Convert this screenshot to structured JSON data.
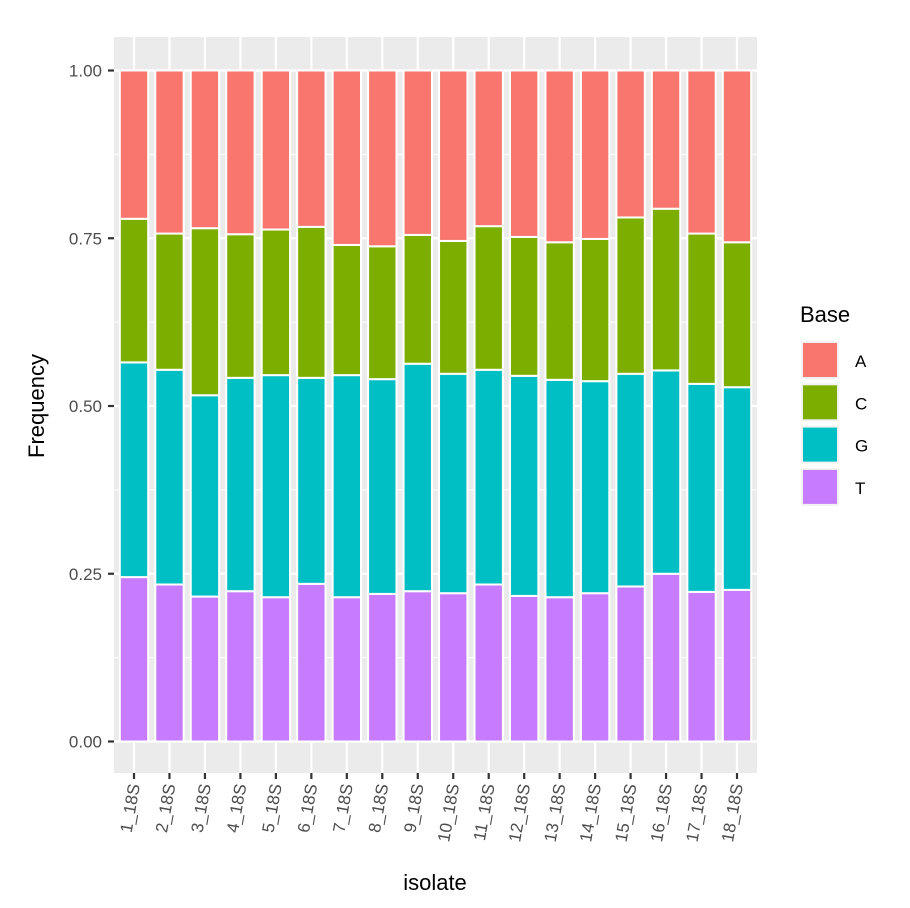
{
  "chart_data": {
    "type": "bar",
    "stacked": true,
    "title": "",
    "xlabel": "isolate",
    "ylabel": "Frequency",
    "ylim": [
      0,
      1
    ],
    "yticks": [
      0,
      0.25,
      0.5,
      0.75,
      1.0
    ],
    "ytick_labels": [
      "0.00",
      "0.25",
      "0.50",
      "0.75",
      "1.00"
    ],
    "grid": true,
    "categories": [
      "1_18S",
      "2_18S",
      "3_18S",
      "4_18S",
      "5_18S",
      "6_18S",
      "7_18S",
      "8_18S",
      "9_18S",
      "10_18S",
      "11_18S",
      "12_18S",
      "13_18S",
      "14_18S",
      "15_18S",
      "16_18S",
      "17_18S",
      "18_18S"
    ],
    "legend": {
      "title": "Base",
      "position": "right"
    },
    "stack_order_bottom_to_top": [
      "T",
      "G",
      "C",
      "A"
    ],
    "series": [
      {
        "name": "A",
        "color": "#F8766D",
        "values": [
          0.221,
          0.243,
          0.235,
          0.244,
          0.237,
          0.233,
          0.26,
          0.262,
          0.245,
          0.254,
          0.232,
          0.248,
          0.256,
          0.251,
          0.219,
          0.206,
          0.243,
          0.256
        ]
      },
      {
        "name": "C",
        "color": "#7CAE00",
        "values": [
          0.214,
          0.203,
          0.249,
          0.214,
          0.217,
          0.225,
          0.194,
          0.198,
          0.192,
          0.198,
          0.214,
          0.207,
          0.205,
          0.212,
          0.233,
          0.241,
          0.224,
          0.216
        ]
      },
      {
        "name": "G",
        "color": "#00BFC4",
        "values": [
          0.32,
          0.32,
          0.3,
          0.318,
          0.331,
          0.307,
          0.331,
          0.32,
          0.339,
          0.327,
          0.32,
          0.328,
          0.324,
          0.316,
          0.317,
          0.303,
          0.31,
          0.302
        ]
      },
      {
        "name": "T",
        "color": "#C77CFF",
        "values": [
          0.245,
          0.234,
          0.216,
          0.224,
          0.215,
          0.235,
          0.215,
          0.22,
          0.224,
          0.221,
          0.234,
          0.217,
          0.215,
          0.221,
          0.231,
          0.25,
          0.223,
          0.226
        ]
      }
    ],
    "label_rotation_deg": -80
  },
  "colors": {
    "panel_background": "#EBEBEB",
    "grid": "#FFFFFF",
    "bar_outline": "#FFFFFF",
    "tick_label": "#4D4D4D"
  }
}
